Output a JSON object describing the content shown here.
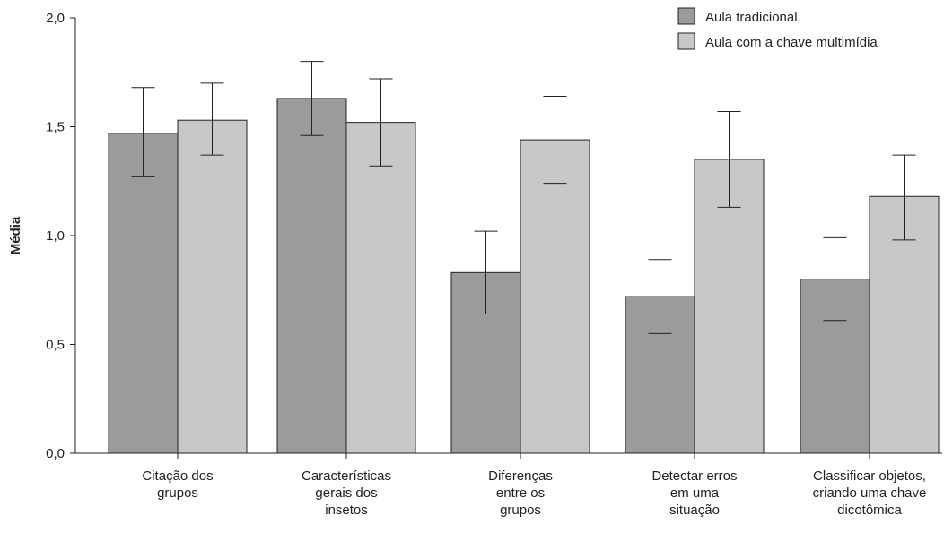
{
  "chart_data": {
    "type": "bar",
    "title": "",
    "xlabel": "",
    "ylabel": "Média",
    "ylim": [
      0,
      2.0
    ],
    "yticks": [
      "0,0",
      "0,5",
      "1,0",
      "1,5",
      "2,0"
    ],
    "ytick_values": [
      0,
      0.5,
      1.0,
      1.5,
      2.0
    ],
    "grid": false,
    "legend_position": "top-right",
    "categories": [
      [
        "Citação dos",
        "grupos"
      ],
      [
        "Características",
        "gerais dos",
        "insetos"
      ],
      [
        "Diferenças",
        "entre os",
        "grupos"
      ],
      [
        "Detectar erros",
        "em uma",
        "situação"
      ],
      [
        "Classificar objetos,",
        "criando uma chave",
        "dicotômica"
      ]
    ],
    "series": [
      {
        "name": "Aula tradicional",
        "color": "#9b9b9d",
        "values": [
          1.47,
          1.63,
          0.83,
          0.72,
          0.8
        ],
        "error_low": [
          1.27,
          1.46,
          0.64,
          0.55,
          0.61
        ],
        "error_high": [
          1.68,
          1.8,
          1.02,
          0.89,
          0.99
        ]
      },
      {
        "name": "Aula com a chave multimídia",
        "color": "#c8c8ca",
        "values": [
          1.53,
          1.52,
          1.44,
          1.35,
          1.18
        ],
        "error_low": [
          1.37,
          1.32,
          1.24,
          1.13,
          0.98
        ],
        "error_high": [
          1.7,
          1.72,
          1.64,
          1.57,
          1.37
        ]
      }
    ]
  }
}
